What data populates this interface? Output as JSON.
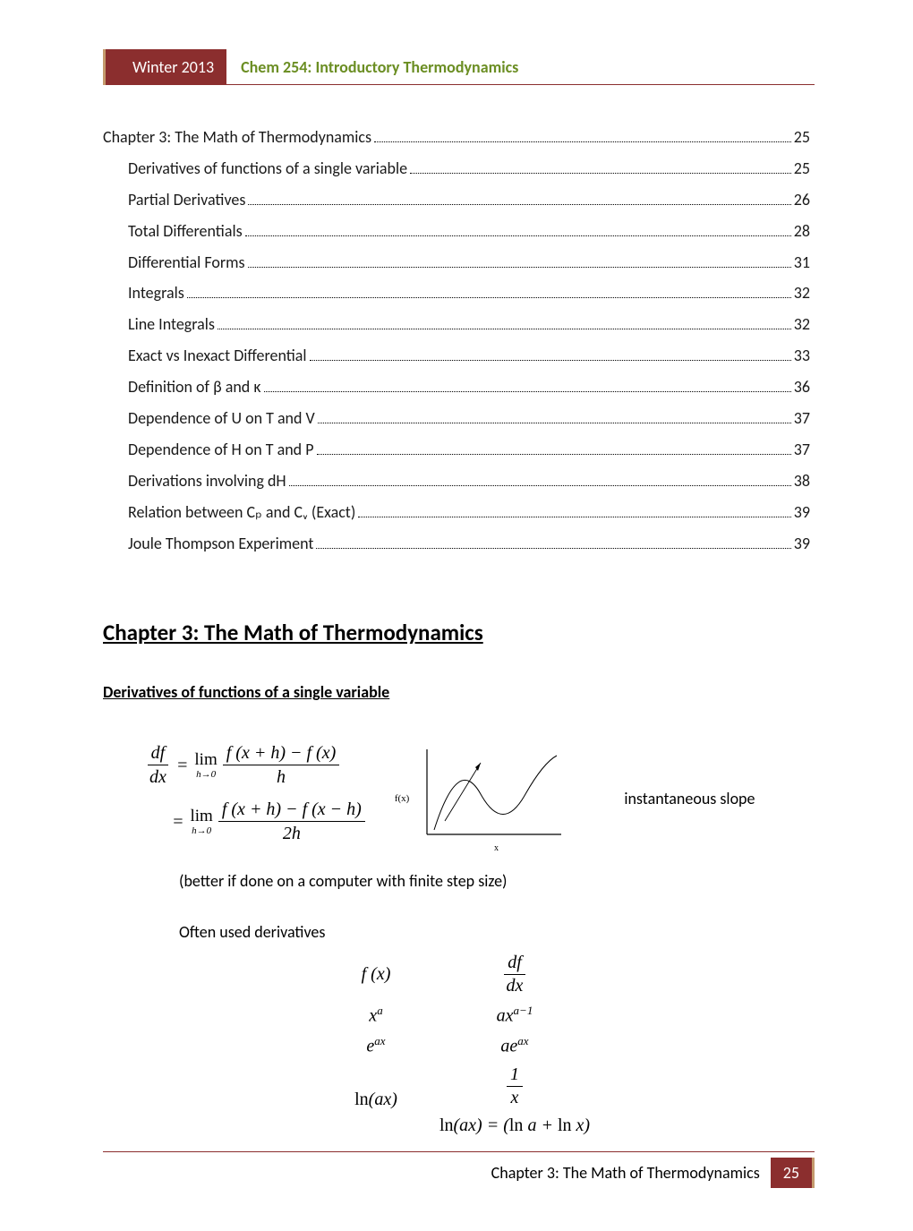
{
  "header": {
    "term": "Winter 2013",
    "course": "Chem 254: Introductory Thermodynamics"
  },
  "toc": [
    {
      "title": "Chapter 3: The Math of Thermodynamics",
      "page": "25",
      "indent": 0
    },
    {
      "title": "Derivatives of functions of a single variable",
      "page": "25",
      "indent": 1
    },
    {
      "title": "Partial Derivatives",
      "page": "26",
      "indent": 1
    },
    {
      "title": "Total Differentials",
      "page": "28",
      "indent": 1
    },
    {
      "title": "Differential Forms",
      "page": "31",
      "indent": 1
    },
    {
      "title": "Integrals",
      "page": "32",
      "indent": 1
    },
    {
      "title": "Line Integrals",
      "page": "32",
      "indent": 1
    },
    {
      "title": "Exact vs Inexact Differential",
      "page": "33",
      "indent": 1
    },
    {
      "title": "Definition of β and κ",
      "page": "36",
      "indent": 1
    },
    {
      "title": "Dependence of U on T and V",
      "page": "37",
      "indent": 1
    },
    {
      "title": "Dependence of H on T and P",
      "page": "37",
      "indent": 1
    },
    {
      "title": "Derivations involving dH",
      "page": "38",
      "indent": 1
    },
    {
      "title": "Relation between Cₚ and Cᵥ (Exact)",
      "page": "39",
      "indent": 1
    },
    {
      "title": "Joule Thompson Experiment",
      "page": "39",
      "indent": 1
    }
  ],
  "chapter_title": "Chapter 3: The Math of Thermodynamics",
  "section_title": "Derivatives of functions of a single variable",
  "equations": {
    "line1_lhs_num": "df",
    "line1_lhs_den": "dx",
    "eq": "=",
    "lim": "lim",
    "lim_sub": "h→0",
    "frac1_num": "f (x + h) − f (x)",
    "frac1_den": "h",
    "frac2_num": "f (x + h) − f (x − h)",
    "frac2_den": "2h"
  },
  "graph": {
    "y_label": "f(x)",
    "x_label": "x"
  },
  "slope_text": "instantaneous slope",
  "note_text": "(better if done on a computer with finite step size)",
  "often_text": "Often used derivatives",
  "table": {
    "h1": "f (x)",
    "h2_num": "df",
    "h2_den": "dx",
    "r1c1": "xᵃ",
    "r1c2": "axᵃ⁻¹",
    "r2c1": "eᵃˣ",
    "r2c2": "aeᵃˣ",
    "r3c1": "ln(ax)",
    "r3c2_num": "1",
    "r3c2_den": "x",
    "r4": "ln(ax) = (ln a + ln x)"
  },
  "footer": {
    "text": "Chapter 3: The Math of Thermodynamics",
    "page": "25"
  },
  "colors": {
    "brand": "#8b2e2e",
    "accent": "#6b8e23",
    "gold": "#c49a6c"
  }
}
